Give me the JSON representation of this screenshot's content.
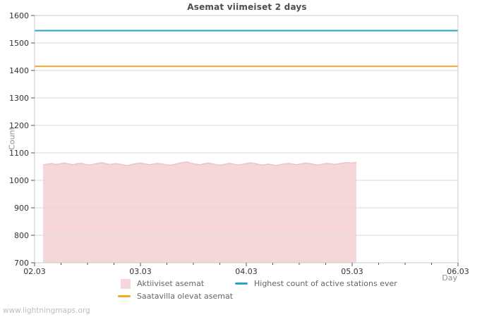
{
  "title": "Asemat viimeiset 2 days",
  "watermark": "www.lightningmaps.org",
  "axes": {
    "y_label": "Count",
    "x_label": "Day"
  },
  "legend": [
    {
      "label": "Aktiiviset asemat",
      "type": "area",
      "color": "#f5d7da"
    },
    {
      "label": "Highest count of active stations ever",
      "type": "line",
      "color": "#28a5c8"
    },
    {
      "label": "Saatavilla olevat asemat",
      "type": "line",
      "color": "#f9a72b"
    }
  ],
  "colors": {
    "grid": "#d9d9d9",
    "border": "#c8c8c8",
    "tick": "#555555",
    "tick_text": "#333333",
    "title_text": "#4d4d4d",
    "axis_name_text": "#8f8f8f",
    "legend_text": "#666666",
    "watermark_text": "#bdbdbd",
    "background": "#ffffff"
  },
  "chart_data": {
    "type": "area",
    "title": "Asemat viimeiset 2 days",
    "xlabel": "Day",
    "ylabel": "Count",
    "ylim": [
      700,
      1600
    ],
    "y_ticks": [
      700,
      800,
      900,
      1000,
      1100,
      1200,
      1300,
      1400,
      1500,
      1600
    ],
    "x_tick_labels": [
      "02.03",
      "03.03",
      "04.03",
      "05.03",
      "06.03"
    ],
    "x_minor_subdivisions": 4,
    "grid": "horizontal",
    "legend_position": "bottom",
    "series": [
      {
        "name": "Aktiiviset asemat",
        "type": "area",
        "fill": "#f5d7da",
        "edge": "#ecc0c6",
        "x_start": 0.08,
        "x_end": 3.04,
        "values": [
          1056,
          1059,
          1061,
          1058,
          1060,
          1063,
          1060,
          1057,
          1060,
          1062,
          1058,
          1056,
          1059,
          1062,
          1064,
          1060,
          1058,
          1061,
          1059,
          1056,
          1054,
          1058,
          1061,
          1063,
          1060,
          1057,
          1059,
          1062,
          1060,
          1057,
          1055,
          1058,
          1062,
          1065,
          1067,
          1062,
          1059,
          1057,
          1060,
          1063,
          1060,
          1057,
          1055,
          1059,
          1062,
          1059,
          1056,
          1058,
          1061,
          1064,
          1061,
          1058,
          1056,
          1059,
          1057,
          1054,
          1057,
          1060,
          1062,
          1059,
          1057,
          1060,
          1063,
          1061,
          1058,
          1056,
          1059,
          1062,
          1060,
          1058,
          1061,
          1063,
          1065,
          1063,
          1066
        ]
      },
      {
        "name": "Saatavilla olevat asemat",
        "type": "hline",
        "color": "#f9a72b",
        "value": 1415
      },
      {
        "name": "Highest count of active stations ever",
        "type": "hline",
        "color": "#28a5c8",
        "value": 1545
      }
    ]
  }
}
